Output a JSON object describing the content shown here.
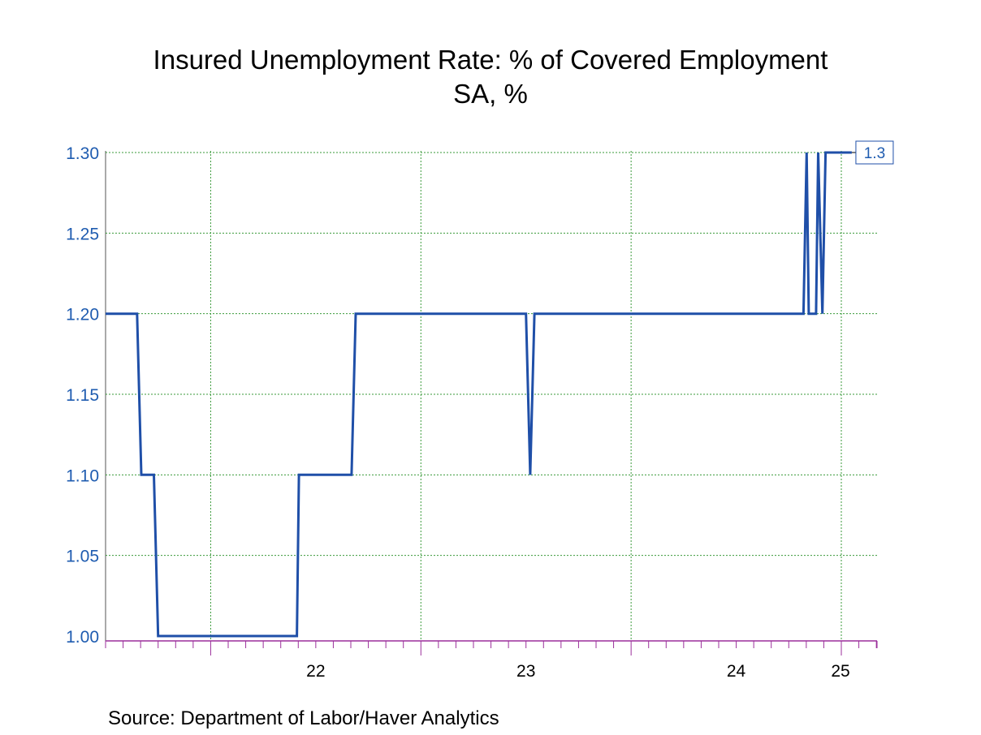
{
  "title": "Insured Unemployment Rate: % of Covered Employment",
  "subtitle": "SA, %",
  "source": "Source:  Department of Labor/Haver Analytics",
  "colors": {
    "line": "#1f4fa8",
    "axis_text": "#1f5cb0",
    "x_axis": "#9b2f9b",
    "grid": "#3a9a3a"
  },
  "chart_data": {
    "type": "line",
    "title": "Insured Unemployment Rate: % of Covered Employment",
    "subtitle": "SA, %",
    "x_unit": "year",
    "xlim": [
      2021.5,
      2025.17
    ],
    "ylim": [
      1.0,
      1.3
    ],
    "y_ticks": [
      1.0,
      1.05,
      1.1,
      1.15,
      1.2,
      1.25,
      1.3
    ],
    "y_tick_labels": [
      "1.00",
      "1.05",
      "1.10",
      "1.15",
      "1.20",
      "1.25",
      "1.30"
    ],
    "x_year_boundaries": [
      2022,
      2023,
      2024,
      2025
    ],
    "x_tick_labels": [
      {
        "label": "22",
        "x": 2022.5
      },
      {
        "label": "23",
        "x": 2023.5
      },
      {
        "label": "24",
        "x": 2024.5
      },
      {
        "label": "25",
        "x": 2025.5
      }
    ],
    "grid": true,
    "last_value_label": "1.3",
    "series": [
      {
        "x": [
          2021.5,
          2021.65,
          2021.67,
          2021.73,
          2021.75,
          2022.41,
          2022.42,
          2022.67,
          2022.69,
          2023.5,
          2023.52,
          2023.54,
          2024.82,
          2024.835,
          2024.845,
          2024.88,
          2024.89,
          2024.91,
          2024.925,
          2025.05
        ],
        "values": [
          1.2,
          1.2,
          1.1,
          1.1,
          1.0,
          1.0,
          1.1,
          1.1,
          1.2,
          1.2,
          1.1,
          1.2,
          1.2,
          1.3,
          1.2,
          1.2,
          1.3,
          1.2,
          1.3,
          1.3
        ]
      }
    ]
  }
}
